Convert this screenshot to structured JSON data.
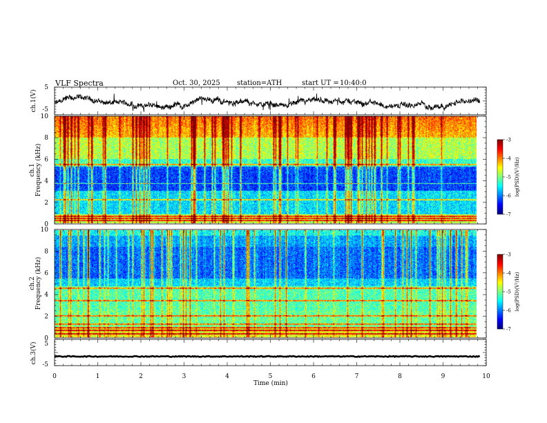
{
  "header": {
    "title": "VLF Spectra",
    "date": "Oct. 30, 2025",
    "station": "station=ATH",
    "start": "start UT =",
    "start_time": "10:40:0"
  },
  "chart_data": [
    {
      "type": "line",
      "name": "ch1-voltage",
      "ylabel": "ch.1(V)",
      "ylim": [
        -5,
        5
      ],
      "yticks": [
        "5",
        "-5"
      ],
      "xlim": [
        0,
        10
      ],
      "trace": "noisy waveform oscillating around -1 V, range about -4.5 to 3.5 V"
    },
    {
      "type": "heatmap",
      "name": "ch1-spectrogram",
      "ylabel_channel": "ch.1",
      "ylabel": "Frequency (kHz)",
      "ylim": [
        0,
        10
      ],
      "yticks": [
        "0",
        "2",
        "4",
        "6",
        "8",
        "10"
      ],
      "xlim": [
        0,
        9.85
      ],
      "colorbar": {
        "label": "log(PSD)(V²/Hz)",
        "ticks": [
          "-3",
          "-4",
          "-5",
          "-6",
          "-7"
        ],
        "range": [
          -7,
          -3
        ]
      },
      "features": {
        "quiet_band_khz": [
          3.0,
          5.3
        ],
        "bright_top_khz": [
          8.0,
          10.0
        ],
        "lines_khz": [
          0.2,
          0.4,
          0.6,
          2.2,
          3.7,
          5.5
        ]
      }
    },
    {
      "type": "heatmap",
      "name": "ch2-spectrogram",
      "ylabel_channel": "ch.2",
      "ylabel": "Frequency (kHz)",
      "ylim": [
        0,
        10
      ],
      "yticks": [
        "0",
        "2",
        "4",
        "6",
        "8",
        "10"
      ],
      "xlim": [
        0,
        9.85
      ],
      "colorbar": {
        "label": "log(PSD)(V²/Hz)",
        "ticks": [
          "-3",
          "-4",
          "-5",
          "-6",
          "-7"
        ],
        "range": [
          -7,
          -3
        ]
      },
      "features": {
        "quiet_band_khz": [
          5.5,
          9.5
        ],
        "lines_khz": [
          0.3,
          0.6,
          0.9,
          1.2,
          2.0,
          3.4,
          4.6
        ]
      }
    },
    {
      "type": "line",
      "name": "ch3-voltage",
      "ylabel": "ch.3(V)",
      "ylim": [
        -5,
        5
      ],
      "yticks": [
        "5",
        "-5"
      ],
      "xlim": [
        0,
        10
      ],
      "trace": "nearly flat at about -1.5 V"
    }
  ],
  "xaxis": {
    "label": "Time (min)",
    "ticks": [
      "0",
      "1",
      "2",
      "3",
      "4",
      "5",
      "6",
      "7",
      "8",
      "9",
      "10"
    ],
    "range": [
      0,
      10
    ]
  }
}
